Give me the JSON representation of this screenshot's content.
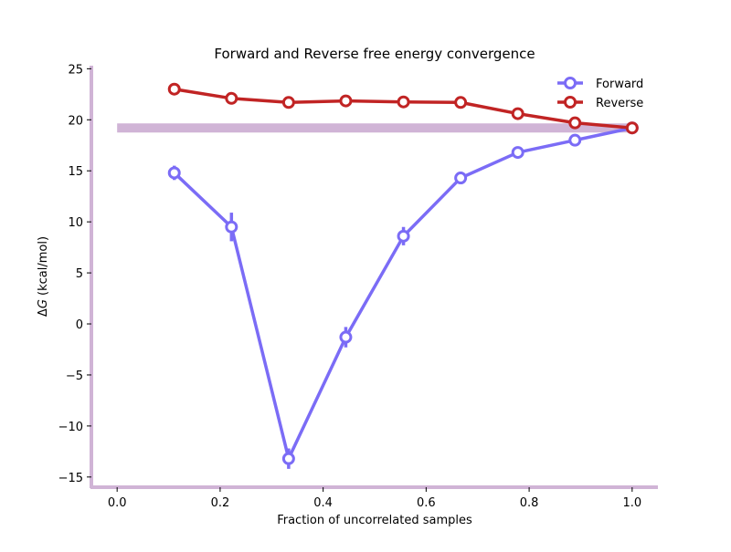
{
  "chart_data": {
    "type": "line",
    "title": "Forward and Reverse free energy convergence",
    "xlabel": "Fraction of uncorrelated samples",
    "ylabel_prefix": "Δ",
    "ylabel_var": "G",
    "ylabel_suffix": " (kcal/mol)",
    "xlim": [
      -0.05,
      1.05
    ],
    "ylim": [
      -16,
      25.3
    ],
    "xticks": [
      0.0,
      0.2,
      0.4,
      0.6,
      0.8,
      1.0
    ],
    "xtick_labels": [
      "0.0",
      "0.2",
      "0.4",
      "0.6",
      "0.8",
      "1.0"
    ],
    "yticks": [
      -15,
      -10,
      -5,
      0,
      5,
      10,
      15,
      20,
      25
    ],
    "ytick_labels": [
      "−15",
      "−10",
      "−5",
      "0",
      "5",
      "10",
      "15",
      "20",
      "25"
    ],
    "grid": false,
    "legend_position": "top-right",
    "reference_band": {
      "x": [
        0.0,
        1.0
      ],
      "y": 19.2,
      "color": "#d0b4d6"
    },
    "series": [
      {
        "name": "Forward",
        "color": "#7b6cf6",
        "x": [
          0.111,
          0.222,
          0.333,
          0.444,
          0.556,
          0.667,
          0.778,
          0.889,
          1.0
        ],
        "y": [
          14.8,
          9.5,
          -13.2,
          -1.3,
          8.6,
          14.3,
          16.8,
          18.0,
          19.2
        ],
        "err": [
          0.7,
          1.4,
          1.0,
          1.0,
          0.9,
          0.6,
          0.3,
          0.3,
          0.2
        ]
      },
      {
        "name": "Reverse",
        "color": "#c12424",
        "x": [
          0.111,
          0.222,
          0.333,
          0.444,
          0.556,
          0.667,
          0.778,
          0.889,
          1.0
        ],
        "y": [
          23.0,
          22.1,
          21.7,
          21.85,
          21.75,
          21.7,
          20.6,
          19.7,
          19.2
        ],
        "err": [
          0.15,
          0.15,
          0.15,
          0.15,
          0.15,
          0.15,
          0.15,
          0.15,
          0.15
        ]
      }
    ],
    "spine_color": "#d0b4d6"
  }
}
